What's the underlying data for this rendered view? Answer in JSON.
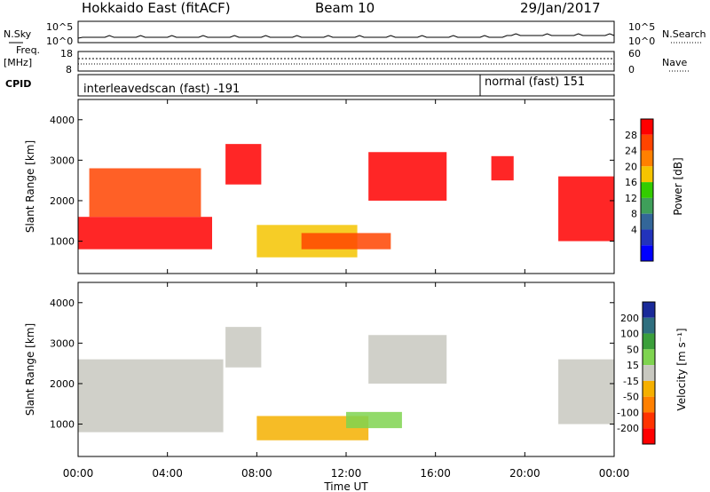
{
  "header": {
    "station": "Hokkaido East (fitACF)",
    "beam": "Beam 10",
    "date": "29/Jan/2017"
  },
  "noise_panel": {
    "left_label": "N.Sky",
    "left_ticks": [
      "10^5",
      "10^0"
    ],
    "right_label": "N.Search",
    "right_ticks": [
      "10^5",
      "10^0"
    ]
  },
  "freq_panel": {
    "left_label_1": "Freq.",
    "left_label_2": "[MHz]",
    "left_ticks": [
      "18",
      "8"
    ],
    "right_label": "Nave",
    "right_ticks": [
      "60",
      "0"
    ]
  },
  "cpid_panel": {
    "label": "CPID",
    "segments": [
      {
        "name": "interleavedscan (fast) -191",
        "start": "00:00",
        "end": "18:00"
      },
      {
        "name": "normal (fast) 151",
        "start": "18:00",
        "end": "24:00"
      }
    ]
  },
  "x_axis": {
    "label": "Time UT",
    "ticks": [
      "00:00",
      "04:00",
      "08:00",
      "12:00",
      "16:00",
      "20:00",
      "00:00"
    ]
  },
  "chart_data": [
    {
      "type": "heatmap",
      "name": "power",
      "ylabel": "Slant Range [km]",
      "xlim_hours": [
        0,
        24
      ],
      "ylim_km": [
        200,
        4500
      ],
      "yticks": [
        "4000",
        "3000",
        "2000",
        "1000"
      ],
      "colorbar": {
        "label": "Power [dB]",
        "ticks": [
          "28",
          "24",
          "20",
          "16",
          "12",
          "8",
          "4"
        ],
        "colors": [
          "#ff0000",
          "#ff4400",
          "#ff8000",
          "#f5c400",
          "#33cc00",
          "#3f9f5a",
          "#336699",
          "#2233bb",
          "#0000ff"
        ]
      },
      "regions": [
        {
          "t0": 0.0,
          "t1": 6.0,
          "r0": 800,
          "r1": 1600,
          "level": 28
        },
        {
          "t0": 0.5,
          "t1": 5.5,
          "r0": 1600,
          "r1": 2800,
          "level": 24
        },
        {
          "t0": 6.6,
          "t1": 8.2,
          "r0": 2400,
          "r1": 3400,
          "level": 28
        },
        {
          "t0": 8.0,
          "t1": 12.5,
          "r0": 600,
          "r1": 1400,
          "level": 16
        },
        {
          "t0": 13.0,
          "t1": 16.5,
          "r0": 2000,
          "r1": 3200,
          "level": 28
        },
        {
          "t0": 10.0,
          "t1": 14.0,
          "r0": 800,
          "r1": 1200,
          "level": 24
        },
        {
          "t0": 18.5,
          "t1": 19.5,
          "r0": 2500,
          "r1": 3100,
          "level": 28
        },
        {
          "t0": 21.5,
          "t1": 24.0,
          "r0": 1000,
          "r1": 2600,
          "level": 28
        }
      ]
    },
    {
      "type": "heatmap",
      "name": "velocity",
      "ylabel": "Slant Range [km]",
      "xlim_hours": [
        0,
        24
      ],
      "ylim_km": [
        200,
        4500
      ],
      "yticks": [
        "4000",
        "3000",
        "2000",
        "1000"
      ],
      "colorbar": {
        "label": "Velocity [m s⁻¹]",
        "ticks": [
          "200",
          "100",
          "50",
          "15",
          "-15",
          "-50",
          "-100",
          "-200"
        ],
        "colors": [
          "#1a2a99",
          "#2f6f7f",
          "#3b9f3b",
          "#7fd450",
          "#c8c8c0",
          "#f5b000",
          "#ff8000",
          "#ff3300",
          "#ff0000"
        ]
      },
      "regions": [
        {
          "t0": 0.0,
          "t1": 6.5,
          "r0": 800,
          "r1": 2600,
          "level": 0
        },
        {
          "t0": 6.6,
          "t1": 8.2,
          "r0": 2400,
          "r1": 3400,
          "level": 0
        },
        {
          "t0": 8.0,
          "t1": 13.0,
          "r0": 600,
          "r1": 1200,
          "level": -30
        },
        {
          "t0": 12.0,
          "t1": 14.5,
          "r0": 900,
          "r1": 1300,
          "level": 40
        },
        {
          "t0": 13.0,
          "t1": 16.5,
          "r0": 2000,
          "r1": 3200,
          "level": 0
        },
        {
          "t0": 21.5,
          "t1": 24.0,
          "r0": 1000,
          "r1": 2600,
          "level": 0
        }
      ]
    }
  ]
}
